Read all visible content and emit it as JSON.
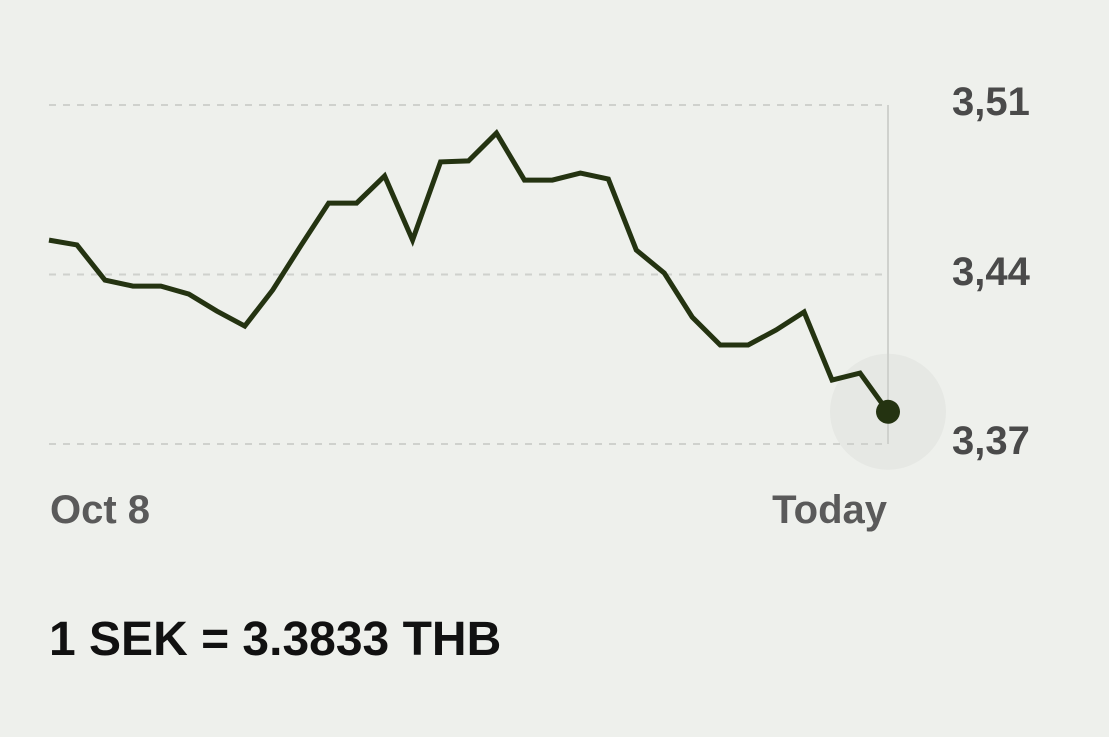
{
  "chart_data": {
    "type": "line",
    "x_labels": [
      "Oct 8",
      "Today"
    ],
    "y_ticks": [
      "3,51",
      "3,44",
      "3,37"
    ],
    "y_tick_values": [
      3.51,
      3.44,
      3.37
    ],
    "ylim": [
      3.37,
      3.51
    ],
    "grid": "horizontal dashed",
    "series": [
      {
        "values": [
          3.4542,
          3.4522,
          3.4377,
          3.4352,
          3.4352,
          3.4319,
          3.4249,
          3.4187,
          3.4336,
          3.4518,
          3.4695,
          3.4695,
          3.4807,
          3.4542,
          3.4865,
          3.4869,
          3.4984,
          3.479,
          3.479,
          3.4819,
          3.4794,
          3.4501,
          3.4406,
          3.4224,
          3.4109,
          3.4109,
          3.4171,
          3.4245,
          3.3964,
          3.3993,
          3.3833
        ]
      }
    ],
    "line_color": "#243311"
  },
  "rate_text": "1 SEK = 3.3833 THB"
}
